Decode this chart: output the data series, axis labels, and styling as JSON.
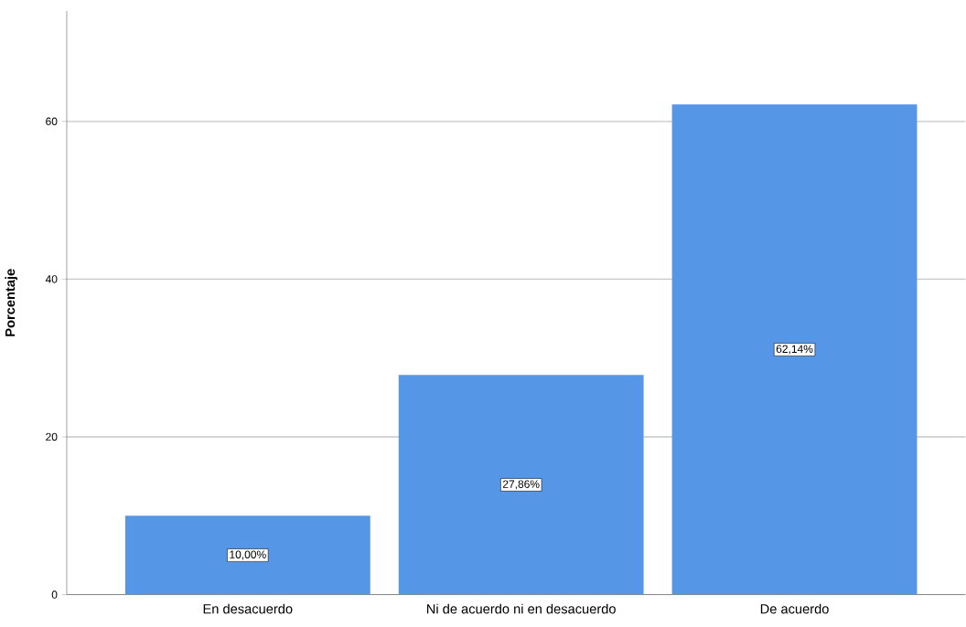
{
  "chart_data": {
    "type": "bar",
    "ylabel": "Porcentaje",
    "categories": [
      "En desacuerdo",
      "Ni de acuerdo ni en desacuerdo",
      "De acuerdo"
    ],
    "values": [
      10.0,
      27.86,
      62.14
    ],
    "value_labels": [
      "10,00%",
      "27,86%",
      "62,14%"
    ],
    "color": "#5596e6",
    "ylim": [
      0,
      74
    ],
    "yticks": [
      0,
      20,
      40,
      60
    ],
    "grid": "y"
  }
}
